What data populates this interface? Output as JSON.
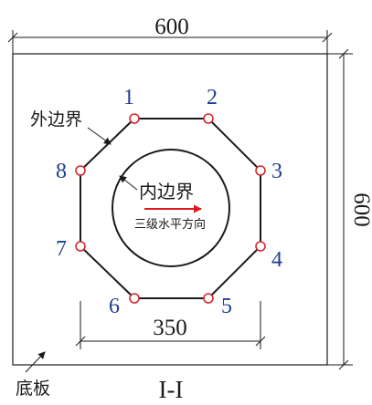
{
  "dims": {
    "top": "600",
    "right": "600",
    "bottom": "350"
  },
  "labels": {
    "outer_boundary": "外边界",
    "inner_boundary": "内边界",
    "direction_note": "三级水平方向",
    "base_plate": "底板",
    "section": "I-I"
  },
  "points": [
    "1",
    "2",
    "3",
    "4",
    "5",
    "6",
    "7",
    "8"
  ],
  "colors": {
    "point_number": "#1f3f8f",
    "point_marker": "#d9262c",
    "arrow": "#e0191f",
    "line": "#1a1a1a"
  }
}
